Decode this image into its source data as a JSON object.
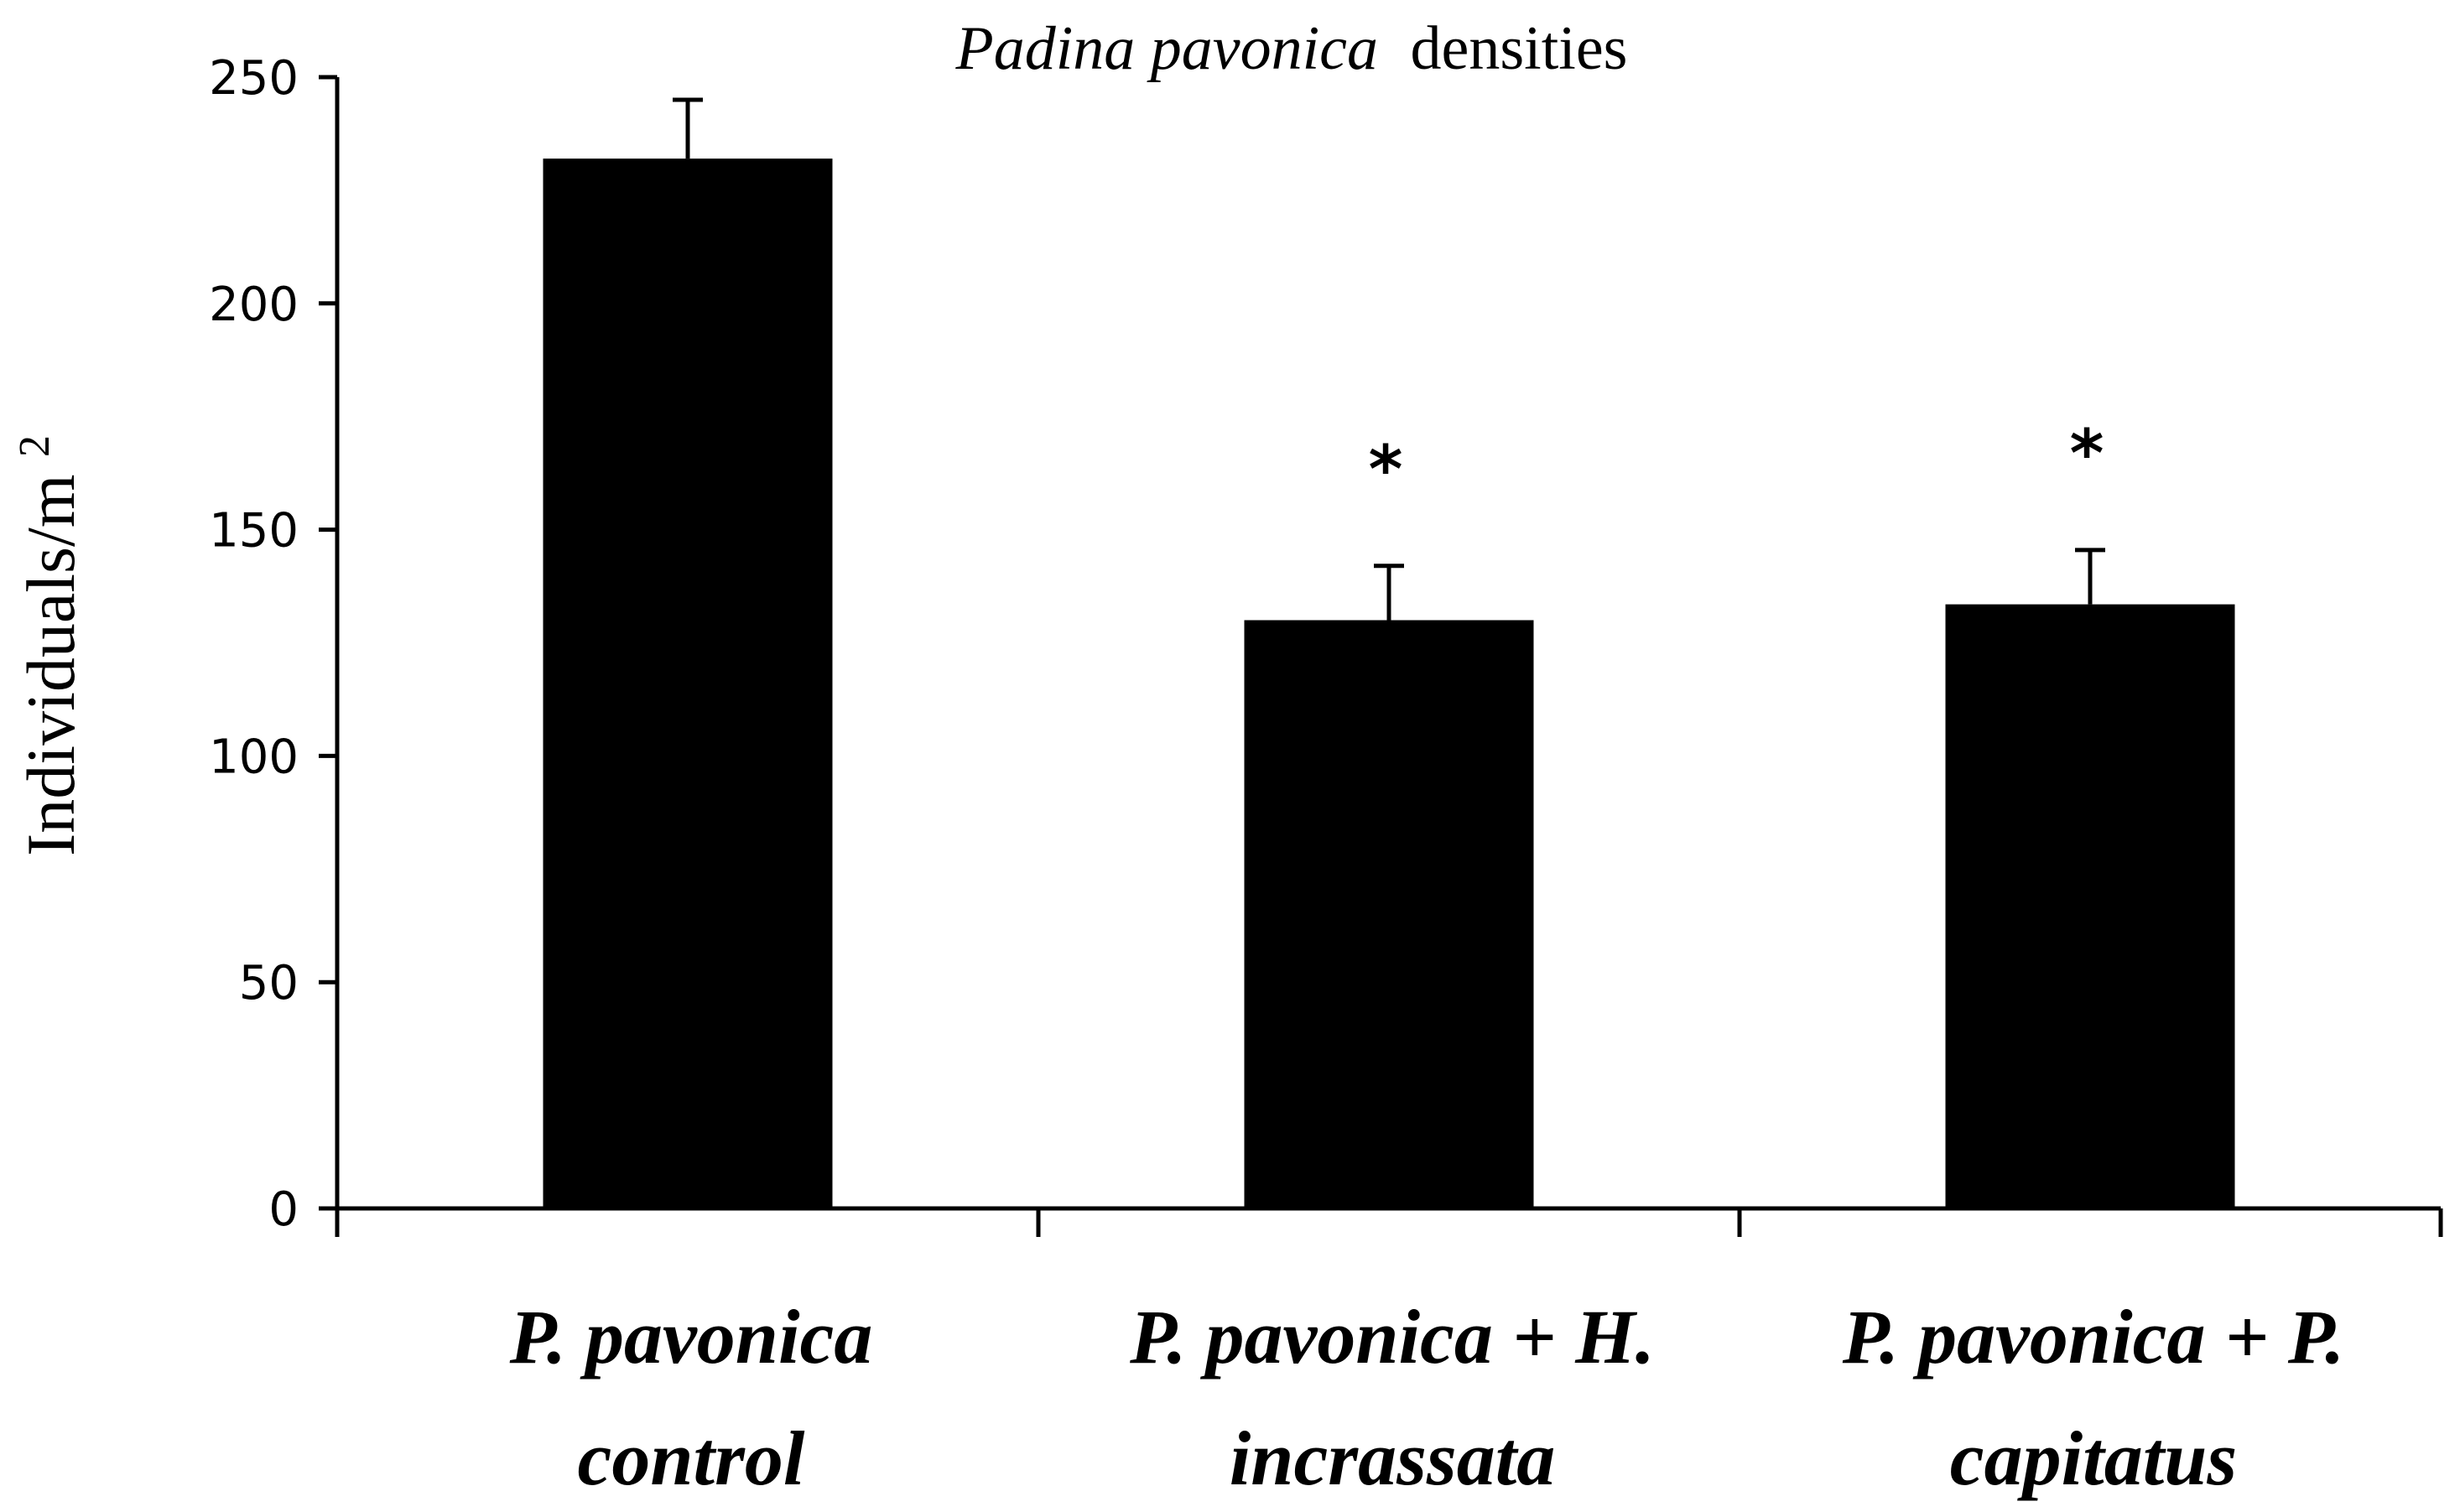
{
  "chart_data": {
    "type": "bar",
    "title_italic": "Padina pavonica",
    "title_rest": "densities",
    "ylabel": "Individuals/m",
    "ylabel_superscript": "2",
    "xlabel": "",
    "ylim": [
      0,
      250
    ],
    "yticks": [
      "0",
      "50",
      "100",
      "150",
      "200",
      "250"
    ],
    "categories": [
      {
        "line1": "P. pavonica",
        "line2": "control"
      },
      {
        "line1": "P. pavonica + H.",
        "line2": "incrassata"
      },
      {
        "line1": "P. pavonica + P.",
        "line2": "capitatus"
      }
    ],
    "values": [
      232,
      130,
      133.5
    ],
    "errors": [
      13,
      12,
      12
    ],
    "significance": [
      "",
      "*",
      "*"
    ],
    "bar_color": "#000000",
    "grid": false,
    "legend": "none"
  }
}
